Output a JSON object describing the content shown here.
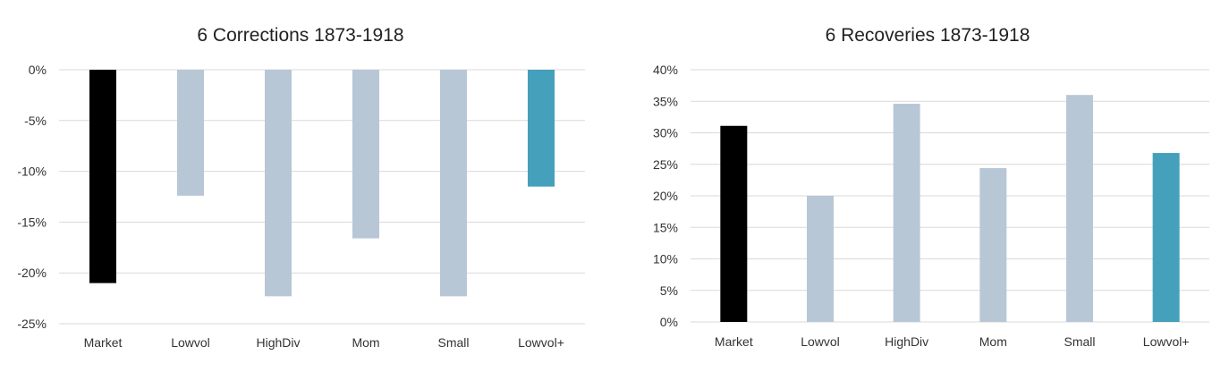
{
  "charts": [
    {
      "type": "bar",
      "title": "6 Corrections 1873-1918",
      "categories": [
        "Market",
        "Lowvol",
        "HighDiv",
        "Mom",
        "Small",
        "Lowvol+"
      ],
      "values": [
        -21.0,
        -12.4,
        -22.3,
        -16.6,
        -22.3,
        -11.5
      ],
      "colors": [
        "#000000",
        "#b8c7d6",
        "#b8c7d6",
        "#b8c7d6",
        "#b8c7d6",
        "#45a0bc"
      ],
      "ylim": [
        -25,
        0
      ],
      "yticks": [
        0,
        -5,
        -10,
        -15,
        -20,
        -25
      ],
      "ytick_labels": [
        "0%",
        "-5%",
        "-10%",
        "-15%",
        "-20%",
        "-25%"
      ],
      "grid": true,
      "xlabel": "",
      "ylabel": ""
    },
    {
      "type": "bar",
      "title": "6 Recoveries 1873-1918",
      "categories": [
        "Market",
        "Lowvol",
        "HighDiv",
        "Mom",
        "Small",
        "Lowvol+"
      ],
      "values": [
        31.1,
        20.0,
        34.6,
        24.4,
        36.0,
        26.8
      ],
      "colors": [
        "#000000",
        "#b8c7d6",
        "#b8c7d6",
        "#b8c7d6",
        "#b8c7d6",
        "#45a0bc"
      ],
      "ylim": [
        0,
        40
      ],
      "yticks": [
        40,
        35,
        30,
        25,
        20,
        15,
        10,
        5,
        0
      ],
      "ytick_labels": [
        "40%",
        "35%",
        "30%",
        "25%",
        "20%",
        "15%",
        "10%",
        "5%",
        "0%"
      ],
      "grid": true,
      "xlabel": "",
      "ylabel": ""
    }
  ]
}
